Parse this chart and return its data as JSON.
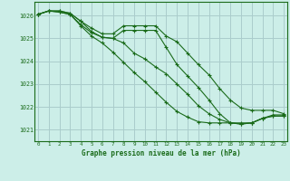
{
  "title": "Graphe pression niveau de la mer (hPa)",
  "bg_color": "#cceee8",
  "plot_bg_color": "#cceee8",
  "grid_color": "#aacccc",
  "line_color": "#1a6b1a",
  "marker_color": "#1a6b1a",
  "ylim": [
    1020.5,
    1026.6
  ],
  "yticks": [
    1021,
    1022,
    1023,
    1024,
    1025,
    1026
  ],
  "xlim": [
    -0.3,
    23.3
  ],
  "xticks": [
    0,
    1,
    2,
    3,
    4,
    5,
    6,
    7,
    8,
    9,
    10,
    11,
    12,
    13,
    14,
    15,
    16,
    17,
    18,
    19,
    20,
    21,
    22,
    23
  ],
  "series": [
    [
      1026.05,
      1026.2,
      1026.2,
      1026.1,
      1025.75,
      1025.45,
      1025.2,
      1025.2,
      1025.55,
      1025.55,
      1025.55,
      1025.55,
      1025.1,
      1024.85,
      1024.35,
      1023.85,
      1023.4,
      1022.8,
      1022.3,
      1021.95,
      1021.85,
      1021.85,
      1021.85,
      1021.7
    ],
    [
      1026.05,
      1026.2,
      1026.2,
      1026.1,
      1025.75,
      1025.3,
      1025.05,
      1025.0,
      1025.35,
      1025.35,
      1025.35,
      1025.35,
      1024.6,
      1023.85,
      1023.35,
      1022.85,
      1022.3,
      1021.7,
      1021.3,
      1021.3,
      1021.3,
      1021.5,
      1021.6,
      1021.6
    ],
    [
      1026.05,
      1026.2,
      1026.15,
      1026.05,
      1025.6,
      1025.25,
      1025.05,
      1025.0,
      1024.8,
      1024.35,
      1024.1,
      1023.75,
      1023.45,
      1023.0,
      1022.55,
      1022.05,
      1021.7,
      1021.45,
      1021.3,
      1021.25,
      1021.3,
      1021.5,
      1021.6,
      1021.6
    ],
    [
      1026.05,
      1026.2,
      1026.15,
      1026.05,
      1025.55,
      1025.1,
      1024.8,
      1024.4,
      1023.95,
      1023.5,
      1023.1,
      1022.65,
      1022.2,
      1021.8,
      1021.55,
      1021.35,
      1021.3,
      1021.3,
      1021.3,
      1021.25,
      1021.3,
      1021.5,
      1021.65,
      1021.65
    ]
  ]
}
